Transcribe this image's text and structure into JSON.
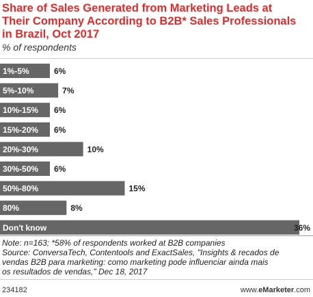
{
  "title_lines": [
    "Share of Sales Generated from Marketing Leads at",
    "Their Company According to B2B* Sales Professionals",
    "in Brazil, Oct 2017"
  ],
  "subtitle": "% of respondents",
  "notes": [
    "Note: n=163; *58% of respondents worked at B2B companies",
    "Source: ConversaTech, Contentools and ExactSales, \"Insights & recados de",
    "vendas B2B para marketing: como marketing pode influenciar ainda mais",
    "os resultados de vendas,\" Dec 18, 2017"
  ],
  "footer": {
    "chart_id": "234182",
    "brand_prefix": "www.",
    "brand_name": "eMarketer",
    "brand_suffix": ".com"
  },
  "colors": {
    "title": "#e42a2a",
    "bar": "#666666",
    "bar_label": "#ffffff"
  },
  "chart_data": {
    "type": "bar",
    "orientation": "horizontal",
    "title": "Share of Sales Generated from Marketing Leads at Their Company According to B2B* Sales Professionals in Brazil, Oct 2017",
    "subtitle": "% of respondents",
    "categories": [
      "1%-5%",
      "5%-10%",
      "10%-15%",
      "15%-20%",
      "20%-30%",
      "30%-50%",
      "50%-80%",
      "80%",
      "Don't know"
    ],
    "values": [
      6,
      7,
      6,
      6,
      10,
      6,
      15,
      8,
      36
    ],
    "value_labels": [
      "6%",
      "7%",
      "6%",
      "6%",
      "10%",
      "6%",
      "15%",
      "8%",
      "36%"
    ],
    "xlim": [
      0,
      36
    ],
    "grid": false,
    "legend": "none"
  }
}
